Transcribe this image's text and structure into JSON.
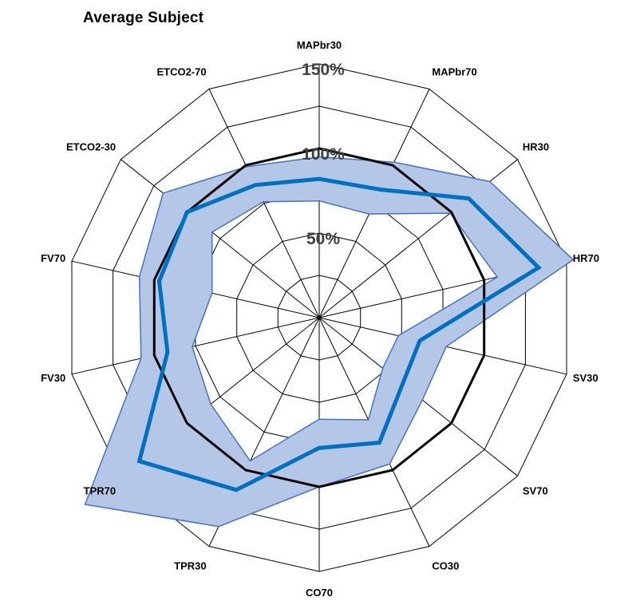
{
  "chart_data": {
    "type": "radar",
    "title": "Average Subject",
    "axes": [
      "MAPbr30",
      "MAPbr70",
      "HR30",
      "HR70",
      "SV30",
      "SV70",
      "CO30",
      "CO70",
      "TPR30",
      "TPR70",
      "FV30",
      "FV70",
      "ETCO2-30",
      "ETCO2-70"
    ],
    "rlim": [
      0,
      150
    ],
    "ring_labels": [
      {
        "value": 50,
        "label": "50%"
      },
      {
        "value": 100,
        "label": "100%"
      },
      {
        "value": 150,
        "label": "150%"
      }
    ],
    "series": [
      {
        "name": "",
        "role": "baseline",
        "color": "#000000",
        "values": [
          100,
          100,
          100,
          100,
          100,
          100,
          100,
          100,
          100,
          100,
          100,
          100,
          100,
          100
        ]
      },
      {
        "name": "",
        "role": "mean",
        "color": "#0070C0",
        "values": [
          82,
          84,
          113,
          133,
          61,
          63,
          82,
          77,
          113,
          136,
          92,
          97,
          100,
          87
        ]
      },
      {
        "name": "",
        "role": "band-upper",
        "color": "#4472C4",
        "values": [
          95,
          102,
          129,
          154,
          77,
          78,
          96,
          100,
          137,
          177,
          108,
          109,
          118,
          99
        ]
      },
      {
        "name": "",
        "role": "band-lower",
        "color": "#4472C4",
        "values": [
          69,
          68,
          99,
          108,
          48,
          48,
          67,
          60,
          94,
          82,
          77,
          65,
          81,
          76
        ]
      }
    ],
    "band_fill": "#B4C7E7",
    "grid": true
  }
}
